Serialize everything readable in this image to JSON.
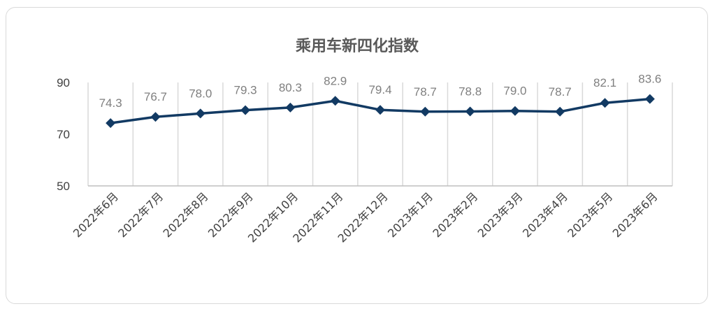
{
  "chart_data": {
    "type": "line",
    "title": "乘用车新四化指数",
    "xlabel": "",
    "ylabel": "",
    "categories": [
      "2022年6月",
      "2022年7月",
      "2022年8月",
      "2022年9月",
      "2022年10月",
      "2022年11月",
      "2022年12月",
      "2023年1月",
      "2023年2月",
      "2023年3月",
      "2023年4月",
      "2023年5月",
      "2023年6月"
    ],
    "series": [
      {
        "name": "",
        "values": [
          74.3,
          76.7,
          78.0,
          79.3,
          80.3,
          82.9,
          79.4,
          78.7,
          78.8,
          79.0,
          78.7,
          82.1,
          83.6
        ],
        "labels": [
          "74.3",
          "76.7",
          "78.0",
          "79.3",
          "80.3",
          "82.9",
          "79.4",
          "78.7",
          "78.8",
          "79.0",
          "78.7",
          "82.1",
          "83.6"
        ]
      }
    ],
    "ylim": [
      50,
      90
    ],
    "yticks": [
      "50",
      "70",
      "90"
    ],
    "grid": "vertical",
    "legend": "none",
    "colors": {
      "line": "#123a63",
      "grid": "#d9d9d9",
      "axis": "#bfbfbf"
    }
  }
}
